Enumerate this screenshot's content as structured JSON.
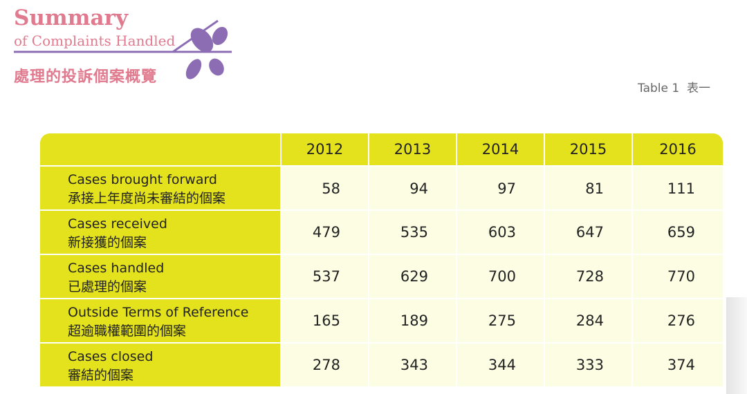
{
  "header": {
    "title": "Summary",
    "subtitle": "of Complaints Handled",
    "title_zh": "處理的投訴個案概覽",
    "table_label": "Table 1  表一"
  },
  "table": {
    "columns": [
      "2012",
      "2013",
      "2014",
      "2015",
      "2016"
    ],
    "rows": [
      {
        "label": "Cases brought forward",
        "label_zh": "承接上年度尚未審結的個案",
        "values": [
          58,
          94,
          97,
          81,
          111
        ]
      },
      {
        "label": "Cases received",
        "label_zh": "新接獲的個案",
        "values": [
          479,
          535,
          603,
          647,
          659
        ]
      },
      {
        "label": "Cases handled",
        "label_zh": "已處理的個案",
        "values": [
          537,
          629,
          700,
          728,
          770
        ]
      },
      {
        "label": "Outside Terms of Reference",
        "label_zh": "超逾職權範圍的個案",
        "values": [
          165,
          189,
          275,
          284,
          276
        ]
      },
      {
        "label": "Cases closed",
        "label_zh": "審結的個案",
        "values": [
          278,
          343,
          344,
          333,
          374
        ]
      }
    ]
  }
}
